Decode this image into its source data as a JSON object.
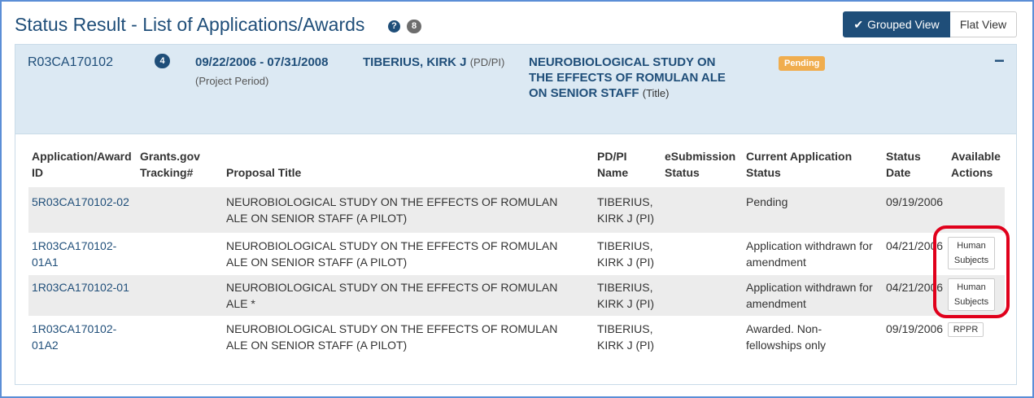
{
  "page": {
    "title": "Status Result - List of Applications/Awards",
    "help_icon": "?",
    "result_count": "8"
  },
  "view_toggle": {
    "grouped_label": "Grouped View",
    "grouped_icon": "✔",
    "flat_label": "Flat View"
  },
  "award": {
    "id": "R03CA170102",
    "application_count": "4",
    "period": "09/22/2006 - 07/31/2008",
    "period_label": "(Project Period)",
    "pi_name": "TIBERIUS, KIRK J",
    "pi_role": "(PD/PI)",
    "title": "NEUROBIOLOGICAL STUDY ON THE EFFECTS OF ROMULAN ALE ON SENIOR STAFF",
    "title_label": "(Title)",
    "status": "Pending",
    "collapse_icon": "−"
  },
  "table": {
    "headers": {
      "app_id": "Application/Award ID",
      "grants_gov": "Grants.gov Tracking#",
      "proposal_title": "Proposal Title",
      "pdpi": "PD/PI Name",
      "esub_status": "eSubmission Status",
      "current_status": "Current Application Status",
      "status_date": "Status Date",
      "actions": "Available Actions"
    },
    "rows": [
      {
        "app_id": "5R03CA170102-02",
        "grants_gov": "",
        "proposal_title": "NEUROBIOLOGICAL STUDY ON THE EFFECTS OF ROMULAN ALE ON SENIOR STAFF (A PILOT)",
        "pdpi": "TIBERIUS, KIRK J (PI)",
        "esub_status": "",
        "current_status": "Pending",
        "status_date": "09/19/2006",
        "action": ""
      },
      {
        "app_id": "1R03CA170102-01A1",
        "grants_gov": "",
        "proposal_title": "NEUROBIOLOGICAL STUDY ON THE EFFECTS OF ROMULAN ALE ON SENIOR STAFF (A PILOT)",
        "pdpi": "TIBERIUS, KIRK J (PI)",
        "esub_status": "",
        "current_status": "Application withdrawn for amendment",
        "status_date": "04/21/2006",
        "action": "Human Subjects"
      },
      {
        "app_id": "1R03CA170102-01",
        "grants_gov": "",
        "proposal_title": "NEUROBIOLOGICAL STUDY ON THE EFFECTS OF ROMULAN ALE *",
        "pdpi": "TIBERIUS, KIRK J (PI)",
        "esub_status": "",
        "current_status": "Application withdrawn for amendment",
        "status_date": "04/21/2006",
        "action": "Human Subjects"
      },
      {
        "app_id": "1R03CA170102-01A2",
        "grants_gov": "",
        "proposal_title": "NEUROBIOLOGICAL STUDY ON THE EFFECTS OF ROMULAN ALE ON SENIOR STAFF (A PILOT)",
        "pdpi": "TIBERIUS, KIRK J (PI)",
        "esub_status": "",
        "current_status": "Awarded. Non-fellowships only",
        "status_date": "09/19/2006",
        "action": "RPPR"
      }
    ]
  },
  "colors": {
    "primary": "#1f4e79",
    "header_bg": "#dce9f3",
    "pending_badge": "#f0ad4e",
    "highlight": "#e0001b",
    "stripe": "#ececec"
  }
}
